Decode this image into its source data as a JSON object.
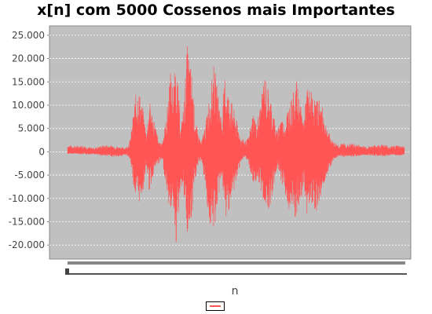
{
  "chart_data": {
    "type": "line",
    "title": "x[n] com 5000 Cossenos mais Importantes",
    "xlabel": "n",
    "ylabel": "",
    "ylim": [
      -23000,
      27000
    ],
    "yticks": [
      25000,
      20000,
      15000,
      10000,
      5000,
      0,
      -5000,
      -10000,
      -15000,
      -20000
    ],
    "ytick_labels": [
      "25.000",
      "20.000",
      "15.000",
      "10.000",
      "5.000",
      "0",
      "-5.000",
      "-10.000",
      "-15.000",
      "-20.000"
    ],
    "grid": true,
    "legend": "bottom-center",
    "series": [
      {
        "color": "#ff5555",
        "envelope": {
          "n": [
            0,
            10,
            20,
            32,
            40,
            50,
            60,
            68,
            72,
            76,
            80,
            86,
            90,
            96,
            100,
            104,
            110,
            116,
            120,
            126,
            130,
            134,
            138,
            144,
            148,
            152,
            158,
            162,
            166,
            170,
            176,
            180,
            186,
            190,
            196,
            200,
            204,
            210,
            216,
            220,
            226,
            230,
            236,
            240,
            246,
            250,
            256,
            260,
            266,
            270,
            276,
            280,
            286,
            290,
            296,
            300,
            304,
            310,
            316,
            320,
            326,
            330,
            336,
            340,
            346,
            350,
            356,
            360,
            370,
            380,
            390,
            400,
            410,
            420,
            428
          ],
          "upper": [
            1500,
            1300,
            1400,
            800,
            1200,
            1500,
            1300,
            1000,
            900,
            1200,
            3000,
            12000,
            14000,
            9000,
            4000,
            11000,
            7000,
            2000,
            2000,
            8000,
            18000,
            14000,
            20000,
            5000,
            11000,
            23000,
            17000,
            7000,
            4000,
            2000,
            7000,
            12000,
            19000,
            14000,
            7000,
            17000,
            13000,
            10000,
            6000,
            3000,
            2500,
            3000,
            9000,
            6000,
            11000,
            17000,
            13000,
            10000,
            4000,
            8000,
            6000,
            10000,
            12000,
            16000,
            10000,
            7000,
            14000,
            13000,
            11000,
            12000,
            8000,
            5000,
            2500,
            2000,
            1500,
            2000,
            1500,
            1800,
            1500,
            1200,
            1400,
            1700,
            1200,
            1500,
            1200
          ],
          "lower": [
            -500,
            -400,
            -600,
            -500,
            -800,
            -900,
            -1100,
            -1100,
            -600,
            -800,
            -2000,
            -10000,
            -11500,
            -8500,
            -3000,
            -9000,
            -4000,
            -2500,
            -1800,
            -8000,
            -13500,
            -10000,
            -20500,
            -6000,
            -10500,
            -18500,
            -15500,
            -6000,
            -3000,
            -1500,
            -9000,
            -16000,
            -17500,
            -12000,
            -5000,
            -15500,
            -13000,
            -9500,
            -5500,
            -2000,
            -1500,
            -2500,
            -7500,
            -6000,
            -9000,
            -11000,
            -12500,
            -9500,
            -3500,
            -5500,
            -9000,
            -12500,
            -14000,
            -15000,
            -12000,
            -7000,
            -13500,
            -11000,
            -13000,
            -10500,
            -7000,
            -4500,
            -2500,
            -1500,
            -800,
            -1200,
            -900,
            -1100,
            -900,
            -700,
            -900,
            -1000,
            -800,
            -900,
            -600
          ]
        }
      }
    ]
  }
}
